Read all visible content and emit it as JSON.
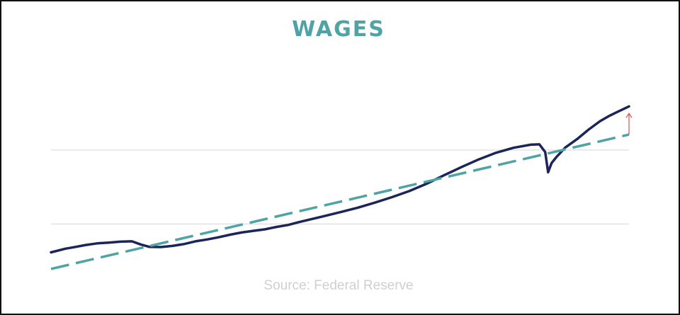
{
  "colors": {
    "title": "#4fa3a5",
    "series": "#1c2559",
    "trend": "#4fa3a5",
    "grid": "#d9d9d9",
    "source": "#cfcfcf",
    "arrow": "#e04b4b"
  },
  "chart_data": {
    "type": "line",
    "title": "WAGES",
    "source": "Source: Federal Reserve",
    "xlabel": "",
    "ylabel": "",
    "xlim": [
      0,
      100
    ],
    "ylim": [
      0,
      100
    ],
    "grid": {
      "horizontal": true,
      "vertical": false
    },
    "gridlines_y": [
      12.9,
      53.1
    ],
    "legend": "none",
    "series": [
      {
        "style": "solid",
        "x": [
          0,
          2.5,
          4,
          6,
          8,
          10,
          12,
          14,
          15.5,
          17,
          19,
          21,
          23,
          25,
          27,
          29,
          31,
          33,
          35,
          37,
          39,
          41,
          43,
          45,
          47,
          50,
          53,
          56,
          59,
          62,
          65,
          68,
          71,
          74,
          77,
          80,
          83,
          84.5,
          85.5,
          86,
          86.6,
          87.5,
          89,
          91,
          93,
          95,
          96.5,
          98,
          100
        ],
        "y": [
          -2.5,
          -0.5,
          0.3,
          1.5,
          2.4,
          2.8,
          3.3,
          3.5,
          1.8,
          0.5,
          0.4,
          1.0,
          2.0,
          3.5,
          4.5,
          5.7,
          7.1,
          8.3,
          9.2,
          10.0,
          11.3,
          12.4,
          14.0,
          15.5,
          17.0,
          19.3,
          21.7,
          24.5,
          27.5,
          30.8,
          34.8,
          39.4,
          43.8,
          48.0,
          51.6,
          54.3,
          56.0,
          56.2,
          52.0,
          41.0,
          46.0,
          49.5,
          54.5,
          59.0,
          64.2,
          68.8,
          71.5,
          73.8,
          76.8
        ]
      },
      {
        "style": "dashed",
        "x": [
          0,
          100
        ],
        "y": [
          -11.5,
          61.5
        ]
      }
    ],
    "annotations": [
      {
        "type": "arrow",
        "x": 100,
        "y_from": 61.5,
        "y_to": 73.0
      }
    ]
  }
}
